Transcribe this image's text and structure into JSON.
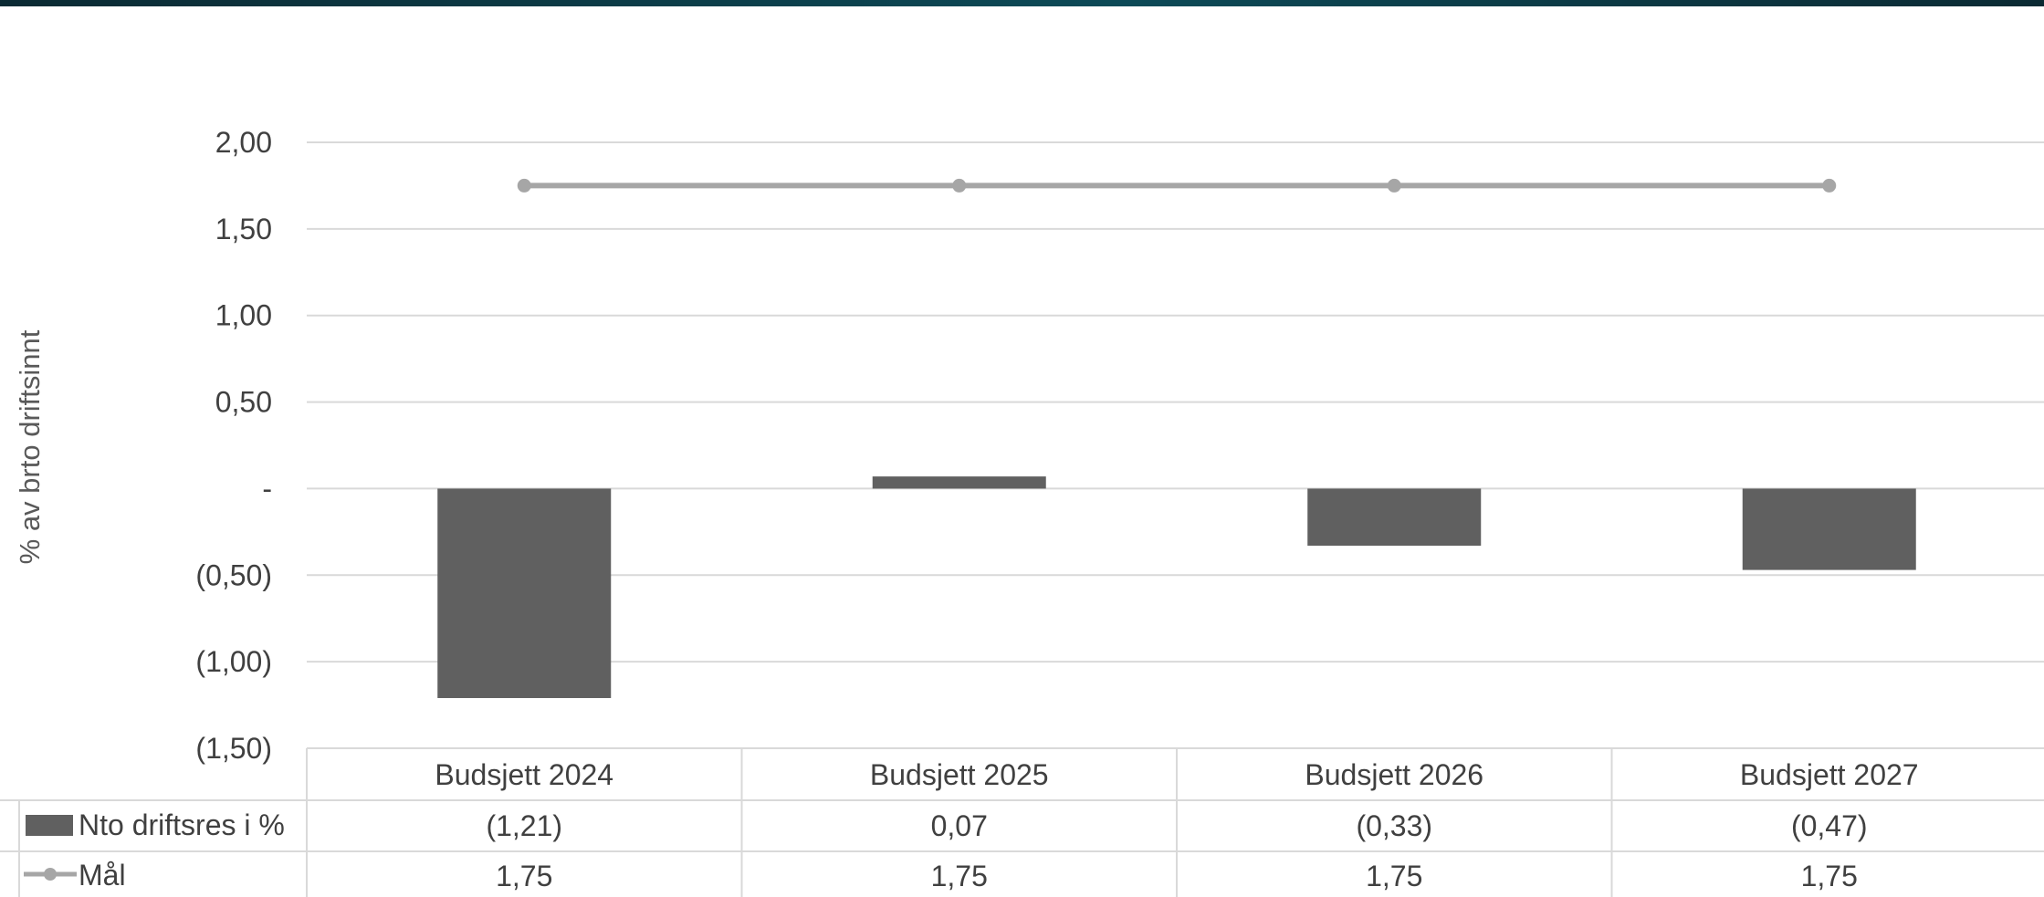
{
  "chart_data": {
    "type": "bar",
    "ylabel": "% av brto driftsinnt",
    "ylim": [
      -1.5,
      2.0
    ],
    "y_ticks": [
      2.0,
      1.5,
      1.0,
      0.5,
      0,
      -0.5,
      -1.0,
      -1.5
    ],
    "y_tick_labels": [
      "2,00",
      "1,50",
      "1,00",
      "0,50",
      "-",
      "(0,50)",
      "(1,00)",
      "(1,50)"
    ],
    "categories": [
      "Budsjett 2024",
      "Budsjett 2025",
      "Budsjett 2026",
      "Budsjett 2027"
    ],
    "grid": true,
    "data_table": true,
    "series": [
      {
        "name": "Nto driftsres i %",
        "kind": "bar",
        "color": "#606060",
        "values": [
          -1.21,
          0.07,
          -0.33,
          -0.47
        ],
        "labels": [
          "(1,21)",
          "0,07",
          "(0,33)",
          "(0,47)"
        ]
      },
      {
        "name": "Mål",
        "kind": "line",
        "color": "#a6a6a6",
        "values": [
          1.75,
          1.75,
          1.75,
          1.75
        ],
        "labels": [
          "1,75",
          "1,75",
          "1,75",
          "1,75"
        ]
      }
    ]
  }
}
